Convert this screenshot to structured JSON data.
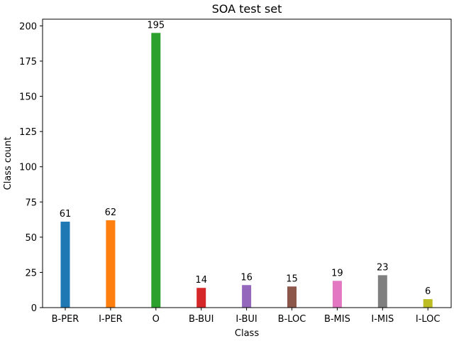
{
  "chart_data": {
    "type": "bar",
    "title": "SOA test set",
    "xlabel": "Class",
    "ylabel": "Class count",
    "categories": [
      "B-PER",
      "I-PER",
      "O",
      "B-BUI",
      "I-BUI",
      "B-LOC",
      "B-MIS",
      "I-MIS",
      "I-LOC"
    ],
    "values": [
      61,
      62,
      195,
      14,
      16,
      15,
      19,
      23,
      6
    ],
    "colors": [
      "#1f77b4",
      "#ff7f0e",
      "#2ca02c",
      "#d62728",
      "#9467bd",
      "#8c564b",
      "#e377c2",
      "#7f7f7f",
      "#bcbd22"
    ],
    "ylim": [
      0,
      204.75
    ],
    "yticks": [
      0,
      25,
      50,
      75,
      100,
      125,
      150,
      175,
      200
    ],
    "grid": false,
    "legend": "none"
  }
}
